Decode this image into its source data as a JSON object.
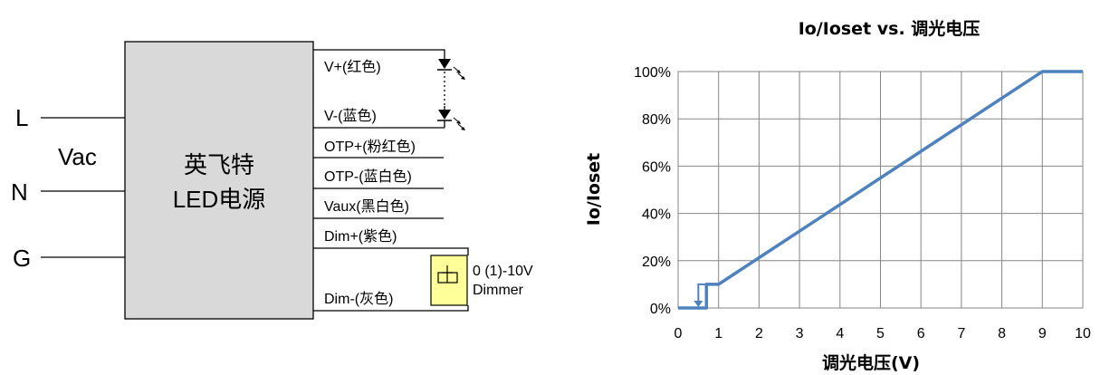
{
  "wiring": {
    "inputs": [
      "L",
      "Vac",
      "N",
      "G"
    ],
    "psu_name": "英飞特",
    "psu_type": "LED电源",
    "wires": [
      "V+(红色)",
      "V-(蓝色)",
      "OTP+(粉红色)",
      "OTP-(蓝白色)",
      "Vaux(黑白色)",
      "Dim+(紫色)",
      "Dim-(灰色)"
    ],
    "dimmer_range": "0 (1)-10V",
    "dimmer_label": "Dimmer"
  },
  "chart_data": {
    "type": "line",
    "title": "Io/Ioset vs. 调光电压",
    "xlabel": "调光电压(V)",
    "ylabel": "Io/Ioset",
    "xlim": [
      0,
      10
    ],
    "ylim": [
      0,
      100
    ],
    "x_ticks": [
      "0",
      "1",
      "2",
      "3",
      "4",
      "5",
      "6",
      "7",
      "8",
      "9",
      "10"
    ],
    "y_ticks": [
      "0%",
      "20%",
      "40%",
      "60%",
      "80%",
      "100%"
    ],
    "grid": true,
    "color": "#4f81bd",
    "series": [
      {
        "x": [
          0,
          0.7,
          0.7,
          1,
          9,
          10
        ],
        "y": [
          0,
          0,
          10,
          10,
          100,
          100
        ]
      }
    ],
    "hysteresis": {
      "x": [
        0.5,
        0.7
      ],
      "y": [
        0,
        10
      ]
    }
  }
}
